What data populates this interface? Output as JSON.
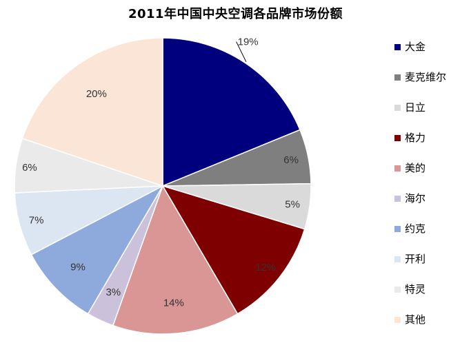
{
  "chart_data": {
    "type": "pie",
    "title": "2011年中国中央空调各品牌市场份额",
    "categories": [
      "大金",
      "麦克维尔",
      "日立",
      "格力",
      "美的",
      "海尔",
      "约克",
      "开利",
      "特灵",
      "其他"
    ],
    "values": [
      19,
      6,
      5,
      12,
      14,
      3,
      9,
      7,
      6,
      20
    ],
    "data_labels": [
      "19%",
      "6%",
      "5%",
      "12%",
      "14%",
      "3%",
      "9%",
      "7%",
      "6%",
      "20%"
    ],
    "colors": [
      "#00007E",
      "#7F7F7F",
      "#DADADA",
      "#7E0000",
      "#D99694",
      "#CCC1DA",
      "#8EA9DB",
      "#DCE6F2",
      "#EAEAEA",
      "#FBE5D6"
    ],
    "start_angle": "12 o'clock",
    "direction": "clockwise",
    "legend_position": "right"
  }
}
